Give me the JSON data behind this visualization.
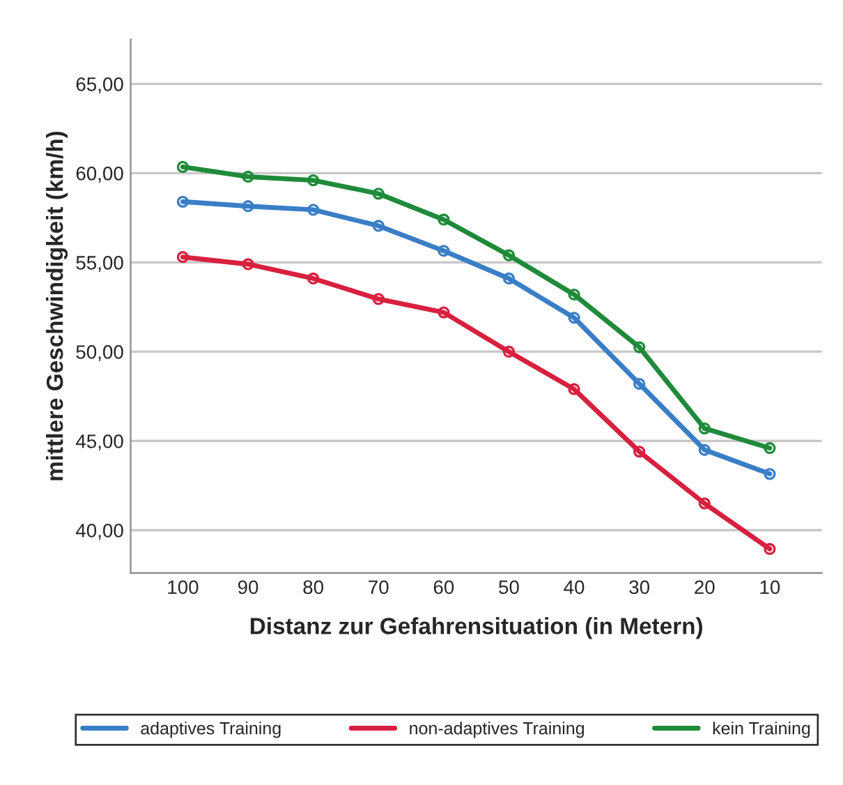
{
  "chart_data": {
    "type": "line",
    "xlabel": "Distanz zur Gefahrensituation (in Metern)",
    "ylabel": "mittlere Geschwindigkeit (km/h)",
    "categories": [
      "100",
      "90",
      "80",
      "70",
      "60",
      "50",
      "40",
      "30",
      "20",
      "10"
    ],
    "series": [
      {
        "name": "adaptives Training",
        "color": "#3a7ec6",
        "values": [
          58.4,
          58.15,
          57.95,
          57.05,
          55.65,
          54.1,
          51.9,
          48.2,
          44.5,
          43.15
        ]
      },
      {
        "name": "non-adaptives Training",
        "color": "#d8203f",
        "values": [
          55.3,
          54.9,
          54.1,
          52.95,
          52.2,
          50.0,
          47.9,
          44.4,
          41.5,
          38.95
        ]
      },
      {
        "name": "kein Training",
        "color": "#1f8a3a",
        "values": [
          60.35,
          59.8,
          59.6,
          58.85,
          57.4,
          55.4,
          53.2,
          50.25,
          45.7,
          44.6
        ]
      }
    ],
    "ylim": [
      37.6,
      67.5
    ],
    "yticks": [
      {
        "value": 40,
        "label": "40,00"
      },
      {
        "value": 45,
        "label": "45,00"
      },
      {
        "value": 50,
        "label": "50,00"
      },
      {
        "value": 55,
        "label": "55,00"
      },
      {
        "value": 60,
        "label": "60,00"
      },
      {
        "value": 65,
        "label": "65,00"
      }
    ],
    "grid": "y",
    "legend": "bottom",
    "marker": "circle",
    "line_style": "solid"
  }
}
